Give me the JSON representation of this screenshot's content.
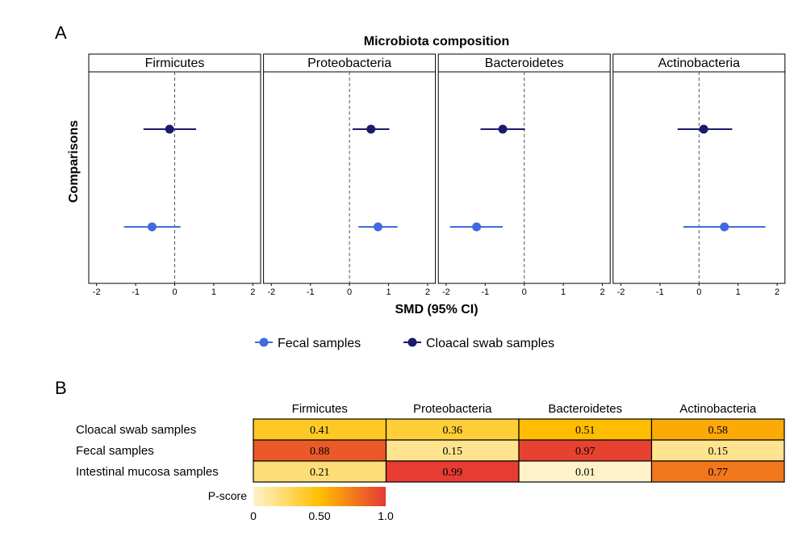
{
  "panel_a_label": "A",
  "panel_b_label": "B",
  "chart_data": [
    {
      "type": "scatter",
      "title": "Microbiota composition",
      "xlabel": "SMD (95% CI)",
      "ylabel": "Comparisons",
      "xlim": [
        -2.2,
        2.2
      ],
      "xticks": [
        "-2",
        "-1",
        "0",
        "1",
        "2"
      ],
      "reference_line": 0,
      "facets": [
        "Firmicutes",
        "Proteobacteria",
        "Bacteroidetes",
        "Actinobacteria"
      ],
      "series": [
        {
          "name": "Cloacal swab samples",
          "color": "#1a1a6e",
          "estimates": [
            {
              "facet": "Firmicutes",
              "x": -0.13,
              "low": -0.8,
              "high": 0.55
            },
            {
              "facet": "Proteobacteria",
              "x": 0.55,
              "low": 0.08,
              "high": 1.02
            },
            {
              "facet": "Bacteroidetes",
              "x": -0.55,
              "low": -1.12,
              "high": 0.02
            },
            {
              "facet": "Actinobacteria",
              "x": 0.12,
              "low": -0.55,
              "high": 0.85
            }
          ]
        },
        {
          "name": "Fecal samples",
          "color": "#4169e1",
          "estimates": [
            {
              "facet": "Firmicutes",
              "x": -0.58,
              "low": -1.3,
              "high": 0.15
            },
            {
              "facet": "Proteobacteria",
              "x": 0.73,
              "low": 0.23,
              "high": 1.23
            },
            {
              "facet": "Bacteroidetes",
              "x": -1.22,
              "low": -1.9,
              "high": -0.55
            },
            {
              "facet": "Actinobacteria",
              "x": 0.65,
              "low": -0.4,
              "high": 1.7
            }
          ]
        }
      ],
      "legend": [
        "Fecal samples",
        "Cloacal swab samples"
      ],
      "legend_position": "bottom"
    },
    {
      "type": "heatmap",
      "columns": [
        "Firmicutes",
        "Proteobacteria",
        "Bacteroidetes",
        "Actinobacteria"
      ],
      "rows": [
        "Cloacal swab samples",
        "Fecal  samples",
        "Intestinal mucosa samples"
      ],
      "values": [
        [
          0.41,
          0.36,
          0.51,
          0.58
        ],
        [
          0.88,
          0.15,
          0.97,
          0.15
        ],
        [
          0.21,
          0.99,
          0.01,
          0.77
        ]
      ],
      "value_labels": [
        [
          "0.41",
          "0.36",
          "0.51",
          "0.58"
        ],
        [
          "0.88",
          "0.15",
          "0.97",
          "0.15"
        ],
        [
          "0.21",
          "0.99",
          "0.01",
          "0.77"
        ]
      ],
      "colorbar_label": "P-score",
      "colorbar_ticks": [
        "0",
        "0.50",
        "1.0"
      ],
      "colorbar_tick_values": [
        0,
        0.5,
        1.0
      ],
      "colorscale": [
        "#fff2cc",
        "#ffc000",
        "#e53935"
      ]
    }
  ]
}
